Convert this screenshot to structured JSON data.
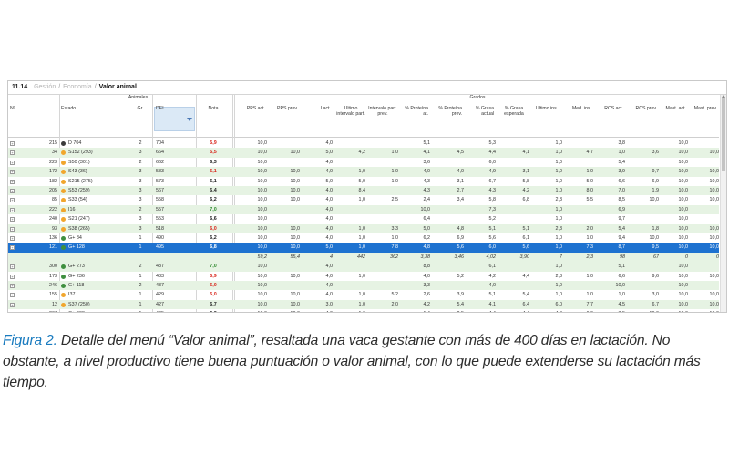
{
  "breadcrumb": {
    "section": "11.14",
    "items": [
      "Gestión",
      "Economía",
      "Valor animal"
    ]
  },
  "group_headers": {
    "animales": "Animales",
    "grados": "Grados"
  },
  "columns": [
    "Nº.",
    "Estado",
    "Gr.",
    "DEL",
    "Nota",
    "PPS act.",
    "PPS prev.",
    "Lact.",
    "Último intervalo part.",
    "Intervalo part. prev.",
    "% Proteína at.",
    "% Proteína prev.",
    "% Grasa actual",
    "% Grasa esperada",
    "Último ins.",
    "Med. ins.",
    "RCS act.",
    "RCS prev.",
    "Mast. act.",
    "Mast. prev."
  ],
  "rows": [
    {
      "no": "",
      "cow": "215",
      "dot": "#3b3b3b",
      "estado": "D 704",
      "gr": "2",
      "del": "704",
      "nota": "5,9",
      "nc": "red",
      "pps": "10,0",
      "ppsp": "",
      "lact": "4,0",
      "ui": "",
      "ip": "",
      "pa": "5,1",
      "pp": "",
      "ga": "5,3",
      "ge": "",
      "uin": "1,0",
      "mi": "",
      "ra": "3,8",
      "rp": "",
      "ma": "10,0",
      "mp": ""
    },
    {
      "no": "",
      "cow": "34",
      "dot": "#f1a62c",
      "estado": "S152 (293)",
      "gr": "3",
      "del": "664",
      "nota": "5,5",
      "nc": "red",
      "pps": "10,0",
      "ppsp": "10,0",
      "lact": "5,0",
      "ui": "4,2",
      "ip": "1,0",
      "pa": "4,1",
      "pp": "4,5",
      "ga": "4,4",
      "ge": "4,1",
      "uin": "1,0",
      "mi": "4,7",
      "ra": "1,0",
      "rp": "3,6",
      "ma": "10,0",
      "mp": "10,0"
    },
    {
      "no": "",
      "cow": "223",
      "dot": "#f1a62c",
      "estado": "S50 (301)",
      "gr": "2",
      "del": "662",
      "nota": "6,3",
      "nc": "dark",
      "pps": "10,0",
      "ppsp": "",
      "lact": "4,0",
      "ui": "",
      "ip": "",
      "pa": "3,6",
      "pp": "",
      "ga": "6,0",
      "ge": "",
      "uin": "1,0",
      "mi": "",
      "ra": "5,4",
      "rp": "",
      "ma": "10,0",
      "mp": ""
    },
    {
      "no": "",
      "cow": "172",
      "dot": "#f1a62c",
      "estado": "S43 (36)",
      "gr": "3",
      "del": "583",
      "nota": "5,1",
      "nc": "red",
      "pps": "10,0",
      "ppsp": "10,0",
      "lact": "4,0",
      "ui": "1,0",
      "ip": "1,0",
      "pa": "4,0",
      "pp": "4,0",
      "ga": "4,9",
      "ge": "3,1",
      "uin": "1,0",
      "mi": "1,0",
      "ra": "3,9",
      "rp": "9,7",
      "ma": "10,0",
      "mp": "10,0"
    },
    {
      "no": "",
      "cow": "182",
      "dot": "#f1a62c",
      "estado": "S215 (275)",
      "gr": "3",
      "del": "573",
      "nota": "6,1",
      "nc": "dark",
      "pps": "10,0",
      "ppsp": "10,0",
      "lact": "5,0",
      "ui": "5,0",
      "ip": "1,0",
      "pa": "4,3",
      "pp": "3,1",
      "ga": "6,7",
      "ge": "5,8",
      "uin": "1,0",
      "mi": "5,0",
      "ra": "6,6",
      "rp": "6,9",
      "ma": "10,0",
      "mp": "10,0"
    },
    {
      "no": "",
      "cow": "205",
      "dot": "#f1a62c",
      "estado": "S53 (259)",
      "gr": "3",
      "del": "567",
      "nota": "6,4",
      "nc": "dark",
      "pps": "10,0",
      "ppsp": "10,0",
      "lact": "4,0",
      "ui": "8,4",
      "ip": "",
      "pa": "4,3",
      "pp": "2,7",
      "ga": "4,3",
      "ge": "4,2",
      "uin": "1,0",
      "mi": "8,0",
      "ra": "7,0",
      "rp": "1,9",
      "ma": "10,0",
      "mp": "10,0"
    },
    {
      "no": "",
      "cow": "85",
      "dot": "#f1a62c",
      "estado": "S33 (54)",
      "gr": "3",
      "del": "558",
      "nota": "6,2",
      "nc": "dark",
      "pps": "10,0",
      "ppsp": "10,0",
      "lact": "4,0",
      "ui": "1,0",
      "ip": "2,5",
      "pa": "2,4",
      "pp": "3,4",
      "ga": "5,8",
      "ge": "6,8",
      "uin": "2,3",
      "mi": "5,5",
      "ra": "8,5",
      "rp": "10,0",
      "ma": "10,0",
      "mp": "10,0"
    },
    {
      "no": "",
      "cow": "222",
      "dot": "#f1a62c",
      "estado": "I16",
      "gr": "2",
      "del": "557",
      "nota": "7,0",
      "nc": "green",
      "pps": "10,0",
      "ppsp": "",
      "lact": "4,0",
      "ui": "",
      "ip": "",
      "pa": "10,0",
      "pp": "",
      "ga": "7,3",
      "ge": "",
      "uin": "1,0",
      "mi": "",
      "ra": "6,9",
      "rp": "",
      "ma": "10,0",
      "mp": ""
    },
    {
      "no": "",
      "cow": "240",
      "dot": "#f1a62c",
      "estado": "S21 (247)",
      "gr": "3",
      "del": "553",
      "nota": "6,6",
      "nc": "dark",
      "pps": "10,0",
      "ppsp": "",
      "lact": "4,0",
      "ui": "",
      "ip": "",
      "pa": "6,4",
      "pp": "",
      "ga": "5,2",
      "ge": "",
      "uin": "1,0",
      "mi": "",
      "ra": "9,7",
      "rp": "",
      "ma": "10,0",
      "mp": ""
    },
    {
      "no": "",
      "cow": "93",
      "dot": "#f1a62c",
      "estado": "S38 (265)",
      "gr": "3",
      "del": "518",
      "nota": "6,0",
      "nc": "red",
      "pps": "10,0",
      "ppsp": "10,0",
      "lact": "4,0",
      "ui": "1,0",
      "ip": "3,3",
      "pa": "5,0",
      "pp": "4,8",
      "ga": "5,1",
      "ge": "5,1",
      "uin": "2,3",
      "mi": "2,0",
      "ra": "5,4",
      "rp": "1,8",
      "ma": "10,0",
      "mp": "10,0"
    },
    {
      "no": "",
      "cow": "136",
      "dot": "#3f8f3f",
      "estado": "G+ 84",
      "gr": "1",
      "del": "490",
      "nota": "6,2",
      "nc": "dark",
      "pps": "10,0",
      "ppsp": "10,0",
      "lact": "4,0",
      "ui": "1,0",
      "ip": "1,0",
      "pa": "6,2",
      "pp": "6,9",
      "ga": "5,6",
      "ge": "6,1",
      "uin": "1,0",
      "mi": "1,0",
      "ra": "9,4",
      "rp": "10,0",
      "ma": "10,0",
      "mp": "10,0"
    },
    {
      "no": "",
      "cow": "121",
      "dot": "#3f8f3f",
      "estado": "G+ 128",
      "gr": "1",
      "del": "495",
      "nota": "6,8",
      "nc": "dark",
      "pps": "10,0",
      "ppsp": "10,0",
      "lact": "5,0",
      "ui": "1,0",
      "ip": "7,8",
      "pa": "4,8",
      "pp": "5,6",
      "ga": "6,0",
      "ge": "5,6",
      "uin": "1,0",
      "mi": "7,3",
      "ra": "8,7",
      "rp": "9,5",
      "ma": "10,0",
      "mp": "10,0",
      "sel": true
    },
    {
      "no": "",
      "cow": "",
      "dot": "",
      "estado": "",
      "gr": "",
      "del": "",
      "nota": "",
      "nc": "dark",
      "pps": "59,2",
      "ppsp": "55,4",
      "lact": "4",
      "ui": "442",
      "ip": "362",
      "pa": "3,38",
      "pp": "3,46",
      "ga": "4,02",
      "ge": "3,90",
      "uin": "7",
      "mi": "2,3",
      "ra": "98",
      "rp": "67",
      "ma": "0",
      "mp": "0",
      "tot": true
    },
    {
      "no": "",
      "cow": "300",
      "dot": "#3f8f3f",
      "estado": "G+ 273",
      "gr": "2",
      "del": "487",
      "nota": "7,0",
      "nc": "green",
      "pps": "10,0",
      "ppsp": "",
      "lact": "4,0",
      "ui": "",
      "ip": "",
      "pa": "8,8",
      "pp": "",
      "ga": "6,1",
      "ge": "",
      "uin": "1,0",
      "mi": "",
      "ra": "5,1",
      "rp": "",
      "ma": "10,0",
      "mp": ""
    },
    {
      "no": "",
      "cow": "173",
      "dot": "#3f8f3f",
      "estado": "G+ 236",
      "gr": "1",
      "del": "483",
      "nota": "5,9",
      "nc": "red",
      "pps": "10,0",
      "ppsp": "10,0",
      "lact": "4,0",
      "ui": "1,0",
      "ip": "",
      "pa": "4,0",
      "pp": "5,2",
      "ga": "4,2",
      "ge": "4,4",
      "uin": "2,3",
      "mi": "1,0",
      "ra": "6,6",
      "rp": "9,6",
      "ma": "10,0",
      "mp": "10,0"
    },
    {
      "no": "",
      "cow": "246",
      "dot": "#3f8f3f",
      "estado": "G+ 118",
      "gr": "2",
      "del": "437",
      "nota": "6,0",
      "nc": "red",
      "pps": "10,0",
      "ppsp": "",
      "lact": "4,0",
      "ui": "",
      "ip": "",
      "pa": "3,3",
      "pp": "",
      "ga": "4,0",
      "ge": "",
      "uin": "1,0",
      "mi": "",
      "ra": "10,0",
      "rp": "",
      "ma": "10,0",
      "mp": ""
    },
    {
      "no": "",
      "cow": "155",
      "dot": "#f1a62c",
      "estado": "I37",
      "gr": "1",
      "del": "429",
      "nota": "5,0",
      "nc": "red",
      "pps": "10,0",
      "ppsp": "10,0",
      "lact": "4,0",
      "ui": "1,0",
      "ip": "5,2",
      "pa": "2,6",
      "pp": "3,9",
      "ga": "5,1",
      "ge": "5,4",
      "uin": "1,0",
      "mi": "1,0",
      "ra": "1,0",
      "rp": "3,0",
      "ma": "10,0",
      "mp": "10,0"
    },
    {
      "no": "",
      "cow": "12",
      "dot": "#f1a62c",
      "estado": "S37 (250)",
      "gr": "1",
      "del": "427",
      "nota": "6,7",
      "nc": "dark",
      "pps": "10,0",
      "ppsp": "10,0",
      "lact": "3,0",
      "ui": "1,0",
      "ip": "2,0",
      "pa": "4,2",
      "pp": "5,4",
      "ga": "4,1",
      "ge": "6,4",
      "uin": "6,0",
      "mi": "7,7",
      "ra": "4,5",
      "rp": "6,7",
      "ma": "10,0",
      "mp": "10,0"
    },
    {
      "no": "",
      "cow": "207",
      "dot": "#3f8f3f",
      "estado": "G+ 238",
      "gr": "1",
      "del": "425",
      "nota": "6,3",
      "nc": "dark",
      "pps": "10,0",
      "ppsp": "10,0",
      "lact": "4,0",
      "ui": "1,6",
      "ip": "",
      "pa": "1,4",
      "pp": "2,5",
      "ga": "4,4",
      "ge": "4,4",
      "uin": "4,3",
      "mi": "6,0",
      "ra": "3,5",
      "rp": "10,0",
      "ma": "10,0",
      "mp": "10,0"
    }
  ],
  "caption": {
    "label": "Figura 2.",
    "text": " Detalle del menú “Valor animal”, resaltada una vaca gestante con más de 400 días en lactación. No obstante, a nivel productivo tiene buena puntuación o valor animal, con lo que puede extenderse su lactación más tiempo."
  }
}
